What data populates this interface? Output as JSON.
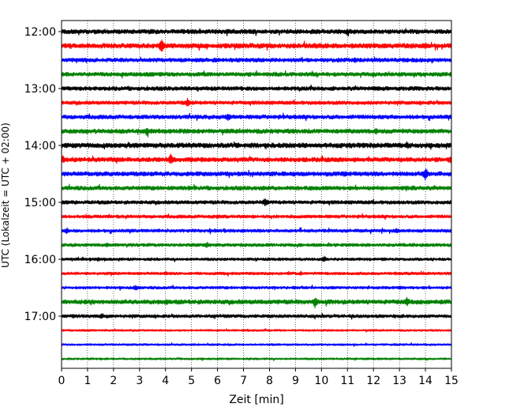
{
  "chart_data": {
    "type": "line",
    "subtype": "helicorder-seismogram",
    "title": "",
    "xlabel": "Zeit  [min]",
    "ylabel": "UTC (Lokalzeit = UTC + 02:00)",
    "xlim": [
      0,
      15
    ],
    "x_ticks": [
      0,
      1,
      2,
      3,
      4,
      5,
      6,
      7,
      8,
      9,
      10,
      11,
      12,
      13,
      14,
      15
    ],
    "x_tick_labels": [
      "0",
      "1",
      "2",
      "3",
      "4",
      "5",
      "6",
      "7",
      "8",
      "9",
      "10",
      "11",
      "12",
      "13",
      "14",
      "15"
    ],
    "grid": "vertical-dotted",
    "trace_interval_minutes": 15,
    "trace_colors": [
      "#000000",
      "#ff0000",
      "#0000ff",
      "#008000"
    ],
    "y_tick_labels": [
      "12:00",
      "13:00",
      "14:00",
      "15:00",
      "16:00",
      "17:00"
    ],
    "traces": [
      {
        "start": "12:00",
        "color": "#000000",
        "amplitude": 2.2,
        "events": [
          {
            "t": 11.0,
            "amp": 5
          }
        ]
      },
      {
        "start": "12:15",
        "color": "#ff0000",
        "amplitude": 2.4,
        "events": [
          {
            "t": 3.85,
            "amp": 9
          },
          {
            "t": 14.0,
            "amp": 4
          }
        ]
      },
      {
        "start": "12:30",
        "color": "#0000ff",
        "amplitude": 2.0,
        "events": [
          {
            "t": 11.3,
            "amp": 4
          }
        ]
      },
      {
        "start": "12:45",
        "color": "#008000",
        "amplitude": 2.0,
        "events": [
          {
            "t": 3.8,
            "amp": 3
          }
        ]
      },
      {
        "start": "13:00",
        "color": "#000000",
        "amplitude": 2.0,
        "events": [
          {
            "t": 4.8,
            "amp": 3
          }
        ]
      },
      {
        "start": "13:15",
        "color": "#ff0000",
        "amplitude": 1.8,
        "events": [
          {
            "t": 4.85,
            "amp": 6
          }
        ]
      },
      {
        "start": "13:30",
        "color": "#0000ff",
        "amplitude": 2.0,
        "events": [
          {
            "t": 6.4,
            "amp": 6
          }
        ]
      },
      {
        "start": "13:45",
        "color": "#008000",
        "amplitude": 2.2,
        "events": [
          {
            "t": 3.3,
            "amp": 6
          },
          {
            "t": 12.1,
            "amp": 4
          }
        ]
      },
      {
        "start": "14:00",
        "color": "#000000",
        "amplitude": 2.4,
        "events": [
          {
            "t": 13.3,
            "amp": 5
          }
        ]
      },
      {
        "start": "14:15",
        "color": "#ff0000",
        "amplitude": 2.2,
        "events": [
          {
            "t": 4.2,
            "amp": 7
          },
          {
            "t": 0.05,
            "amp": 5
          },
          {
            "t": 14.95,
            "amp": 5
          }
        ]
      },
      {
        "start": "14:30",
        "color": "#0000ff",
        "amplitude": 2.2,
        "events": [
          {
            "t": 14.0,
            "amp": 8
          },
          {
            "t": 10.9,
            "amp": 4
          }
        ]
      },
      {
        "start": "14:45",
        "color": "#008000",
        "amplitude": 2.0,
        "events": [
          {
            "t": 13.5,
            "amp": 4
          },
          {
            "t": 4.9,
            "amp": 3
          }
        ]
      },
      {
        "start": "15:00",
        "color": "#000000",
        "amplitude": 1.8,
        "events": [
          {
            "t": 7.85,
            "amp": 6
          }
        ]
      },
      {
        "start": "15:15",
        "color": "#ff0000",
        "amplitude": 1.6,
        "events": [
          {
            "t": 6.0,
            "amp": 3
          }
        ]
      },
      {
        "start": "15:30",
        "color": "#0000ff",
        "amplitude": 1.6,
        "events": [
          {
            "t": 0.2,
            "amp": 4
          },
          {
            "t": 12.9,
            "amp": 4
          }
        ]
      },
      {
        "start": "15:45",
        "color": "#008000",
        "amplitude": 1.6,
        "events": [
          {
            "t": 5.6,
            "amp": 4
          },
          {
            "t": 1.75,
            "amp": 3
          }
        ]
      },
      {
        "start": "16:00",
        "color": "#000000",
        "amplitude": 1.4,
        "events": [
          {
            "t": 10.1,
            "amp": 4
          },
          {
            "t": 1.4,
            "amp": 3
          }
        ]
      },
      {
        "start": "16:15",
        "color": "#ff0000",
        "amplitude": 1.4,
        "events": [
          {
            "t": 4.0,
            "amp": 3
          }
        ]
      },
      {
        "start": "16:30",
        "color": "#0000ff",
        "amplitude": 1.4,
        "events": [
          {
            "t": 2.85,
            "amp": 4
          },
          {
            "t": 13.0,
            "amp": 3
          }
        ]
      },
      {
        "start": "16:45",
        "color": "#008000",
        "amplitude": 2.2,
        "events": [
          {
            "t": 9.75,
            "amp": 7
          },
          {
            "t": 13.3,
            "amp": 6
          },
          {
            "t": 4.05,
            "amp": 4
          }
        ]
      },
      {
        "start": "17:00",
        "color": "#000000",
        "amplitude": 1.6,
        "events": [
          {
            "t": 1.55,
            "amp": 4
          },
          {
            "t": 0.45,
            "amp": 3
          }
        ]
      },
      {
        "start": "17:15",
        "color": "#ff0000",
        "amplitude": 1.0,
        "events": []
      },
      {
        "start": "17:30",
        "color": "#0000ff",
        "amplitude": 1.0,
        "events": []
      },
      {
        "start": "17:45",
        "color": "#008000",
        "amplitude": 1.0,
        "events": []
      }
    ]
  }
}
